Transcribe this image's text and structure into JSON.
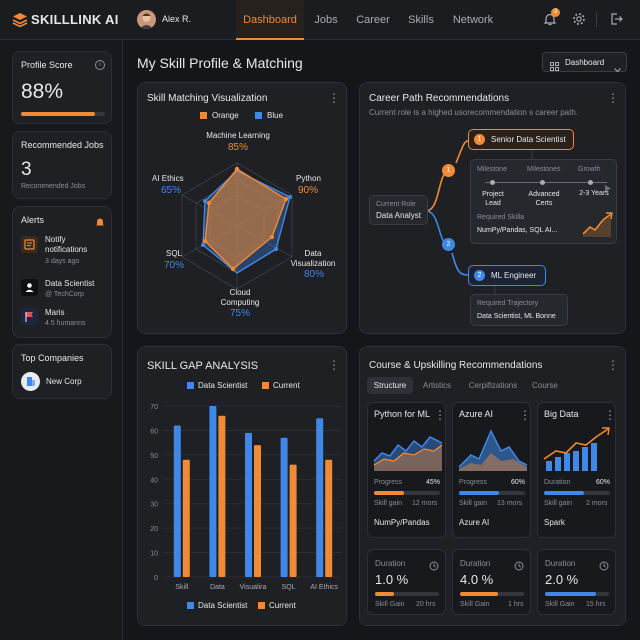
{
  "app": {
    "name": "SKILLLINK AI",
    "user": "Alex R.",
    "notification_count": "3"
  },
  "nav": {
    "tabs": [
      "Dashboard",
      "Jobs",
      "Career",
      "Skills",
      "Network"
    ],
    "active": "Dashboard"
  },
  "sidebar": {
    "profile_score": {
      "label": "Profile Score",
      "value": "88%",
      "progress": 0.88
    },
    "recommended_jobs": {
      "label": "Recommended Jobs",
      "value": "3",
      "sub": "Recommended Jobs"
    },
    "alerts": {
      "label": "Alerts",
      "items": [
        {
          "title": "Notify notifications",
          "sub": "3 days ago"
        },
        {
          "title": "Data Scientist",
          "sub": "@ TechCorp"
        },
        {
          "title": "Maris",
          "sub": "4.5 humanns"
        }
      ]
    },
    "top_companies": {
      "label": "Top Companies",
      "item": "New Corp"
    }
  },
  "page": {
    "title": "My Skill Profile & Matching",
    "view_select": "Dashboard"
  },
  "radar": {
    "title": "Skill Matching Visualization",
    "legend": [
      "Orange",
      "Blue"
    ],
    "axes": [
      {
        "name": "Machine Learning",
        "value": "85%"
      },
      {
        "name": "Python",
        "value": "90%"
      },
      {
        "name": "Data Visualization",
        "value": "80%"
      },
      {
        "name": "Cloud Computing",
        "value": "75%"
      },
      {
        "name": "SQL",
        "value": "70%"
      },
      {
        "name": "AI Ethics",
        "value": "65%"
      }
    ]
  },
  "career": {
    "title": "Career Path Recommendations",
    "subtitle": "Current role is a highed usorecommendation s career path.",
    "current_role_label": "Current Role",
    "current_role": "Data Analyst",
    "path1": {
      "step": "1",
      "title": "Senior Data Scientist"
    },
    "path2": {
      "step": "2",
      "title": "ML Engineer"
    },
    "detail": {
      "headers": [
        "Milestone",
        "Milestones",
        "Growth"
      ],
      "values": [
        "Project Lead",
        "Advanced Certs",
        "2-3 Years"
      ],
      "req_label": "Required Skilla",
      "req_value": "NumPy/Pandas, SQL AI..."
    },
    "trajectory": {
      "label": "Required Trajectory",
      "value": "Data Scientist, ML Bonne"
    }
  },
  "gap": {
    "title": "SKILL GAP ANALYSIS",
    "legend": [
      "Data Scientist",
      "Current"
    ]
  },
  "chart_data": {
    "type": "bar",
    "title": "SKILL GAP ANALYSIS",
    "categories": [
      "Skill",
      "Data",
      "Visualira",
      "SQL",
      "AI Ethics"
    ],
    "series": [
      {
        "name": "Data Scientist",
        "values": [
          62,
          70,
          59,
          57,
          65
        ]
      },
      {
        "name": "Current",
        "values": [
          48,
          66,
          54,
          46,
          48
        ]
      }
    ],
    "yticks": [
      "0",
      "10",
      "20",
      "30",
      "40",
      "50",
      "60",
      "70"
    ],
    "ylim": [
      0,
      70
    ],
    "colors": [
      "#3f88e8",
      "#f08a35"
    ]
  },
  "courses": {
    "title": "Course & Upskilling Recommendations",
    "tabs": [
      "Structure",
      "Artistics",
      "Cerpifizations",
      "Course"
    ],
    "active_tab": "Structure",
    "cards": [
      {
        "title": "Python for ML",
        "stat_label": "Progress",
        "stat_value": "45%",
        "progress": 0.45,
        "gain_label": "Skill gain",
        "gain_value": "12 mors",
        "footer": "NumPy/Pandas"
      },
      {
        "title": "Azure AI",
        "stat_label": "Progress",
        "stat_value": "60%",
        "progress": 0.6,
        "gain_label": "Skill gain",
        "gain_value": "13 mors",
        "footer": "Azure AI"
      },
      {
        "title": "Big Data",
        "stat_label": "Duration",
        "stat_value": "60%",
        "progress": 0.6,
        "gain_label": "Skill gain",
        "gain_value": "2 mors",
        "footer": "Spark"
      }
    ],
    "durations": [
      {
        "label": "Duration",
        "value": "1.0 %",
        "gain_label": "Skill Gain",
        "gain_value": "20 hrs",
        "progress": 0.3,
        "color": "#f08a35"
      },
      {
        "label": "Duration",
        "value": "4.0 %",
        "gain_label": "Skill Gain",
        "gain_value": "1 hrs",
        "progress": 0.6,
        "color": "#f08a35"
      },
      {
        "label": "Duration",
        "value": "2.0 %",
        "gain_label": "Skill Gain",
        "gain_value": "15 hrs",
        "progress": 0.8,
        "color": "#3f88e8"
      }
    ]
  }
}
